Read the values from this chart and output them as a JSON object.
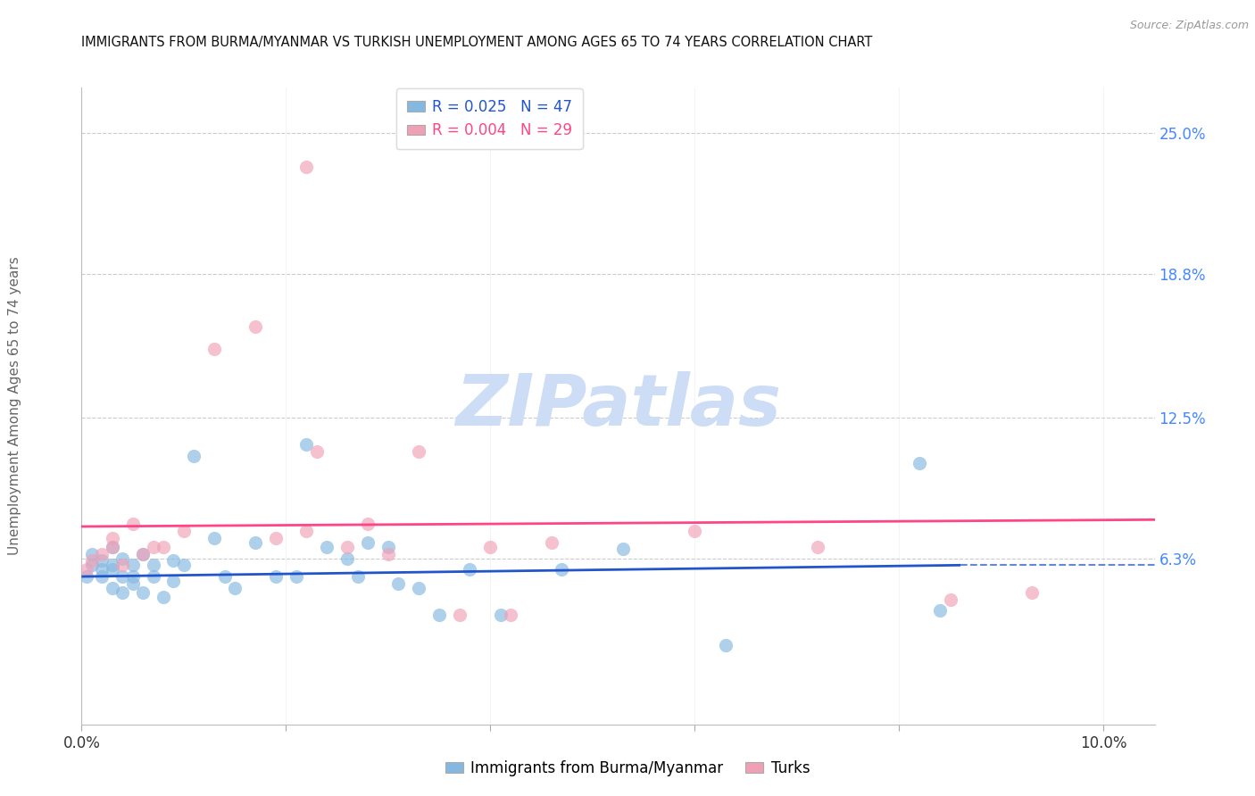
{
  "title": "IMMIGRANTS FROM BURMA/MYANMAR VS TURKISH UNEMPLOYMENT AMONG AGES 65 TO 74 YEARS CORRELATION CHART",
  "source": "Source: ZipAtlas.com",
  "ylabel": "Unemployment Among Ages 65 to 74 years",
  "xlim": [
    0.0,
    0.105
  ],
  "ylim": [
    -0.01,
    0.27
  ],
  "ytick_vals": [
    0.063,
    0.125,
    0.188,
    0.25
  ],
  "ytick_labels": [
    "6.3%",
    "12.5%",
    "18.8%",
    "25.0%"
  ],
  "xtick_vals": [
    0.0,
    0.02,
    0.04,
    0.06,
    0.08,
    0.1
  ],
  "xtick_labels": [
    "0.0%",
    "",
    "",
    "",
    "",
    "10.0%"
  ],
  "legend_R_blue": "0.025",
  "legend_N_blue": "47",
  "legend_R_pink": "0.004",
  "legend_N_pink": "29",
  "legend_label_blue": "Immigrants from Burma/Myanmar",
  "legend_label_pink": "Turks",
  "blue_scatter_x": [
    0.0005,
    0.001,
    0.001,
    0.002,
    0.002,
    0.002,
    0.003,
    0.003,
    0.003,
    0.003,
    0.004,
    0.004,
    0.004,
    0.005,
    0.005,
    0.005,
    0.006,
    0.006,
    0.007,
    0.007,
    0.008,
    0.009,
    0.009,
    0.01,
    0.011,
    0.013,
    0.014,
    0.015,
    0.017,
    0.019,
    0.021,
    0.022,
    0.024,
    0.026,
    0.027,
    0.028,
    0.03,
    0.031,
    0.033,
    0.035,
    0.038,
    0.041,
    0.047,
    0.053,
    0.063,
    0.082,
    0.084
  ],
  "blue_scatter_y": [
    0.055,
    0.065,
    0.06,
    0.058,
    0.055,
    0.062,
    0.05,
    0.058,
    0.06,
    0.068,
    0.048,
    0.055,
    0.063,
    0.052,
    0.06,
    0.055,
    0.048,
    0.065,
    0.06,
    0.055,
    0.046,
    0.053,
    0.062,
    0.06,
    0.108,
    0.072,
    0.055,
    0.05,
    0.07,
    0.055,
    0.055,
    0.113,
    0.068,
    0.063,
    0.055,
    0.07,
    0.068,
    0.052,
    0.05,
    0.038,
    0.058,
    0.038,
    0.058,
    0.067,
    0.025,
    0.105,
    0.04
  ],
  "pink_scatter_x": [
    0.0005,
    0.001,
    0.002,
    0.003,
    0.003,
    0.004,
    0.005,
    0.006,
    0.007,
    0.008,
    0.01,
    0.013,
    0.017,
    0.019,
    0.022,
    0.023,
    0.026,
    0.028,
    0.03,
    0.033,
    0.037,
    0.04,
    0.042,
    0.046,
    0.06,
    0.072,
    0.085,
    0.093,
    0.022
  ],
  "pink_scatter_y": [
    0.058,
    0.062,
    0.065,
    0.068,
    0.072,
    0.06,
    0.078,
    0.065,
    0.068,
    0.068,
    0.075,
    0.155,
    0.165,
    0.072,
    0.075,
    0.11,
    0.068,
    0.078,
    0.065,
    0.11,
    0.038,
    0.068,
    0.038,
    0.07,
    0.075,
    0.068,
    0.045,
    0.048,
    0.235
  ],
  "blue_trend_x0": 0.0,
  "blue_trend_x1": 0.086,
  "blue_trend_y0": 0.055,
  "blue_trend_y1": 0.06,
  "pink_trend_x0": 0.0,
  "pink_trend_x1": 0.105,
  "pink_trend_y0": 0.077,
  "pink_trend_y1": 0.08,
  "dashed_line_x0": 0.086,
  "dashed_line_x1": 0.105,
  "dashed_line_y": 0.06,
  "watermark_text": "ZIPatlas",
  "watermark_color": "#ccddf5",
  "background_color": "#ffffff",
  "grid_color": "#cccccc",
  "title_color": "#111111",
  "axis_label_color": "#666666",
  "right_tick_color": "#4488ff",
  "blue_dot_color": "#85b8e0",
  "pink_dot_color": "#f0a0b5",
  "blue_trend_color": "#2255cc",
  "pink_trend_color": "#ff4488",
  "dot_size": 120,
  "dot_alpha": 0.65
}
